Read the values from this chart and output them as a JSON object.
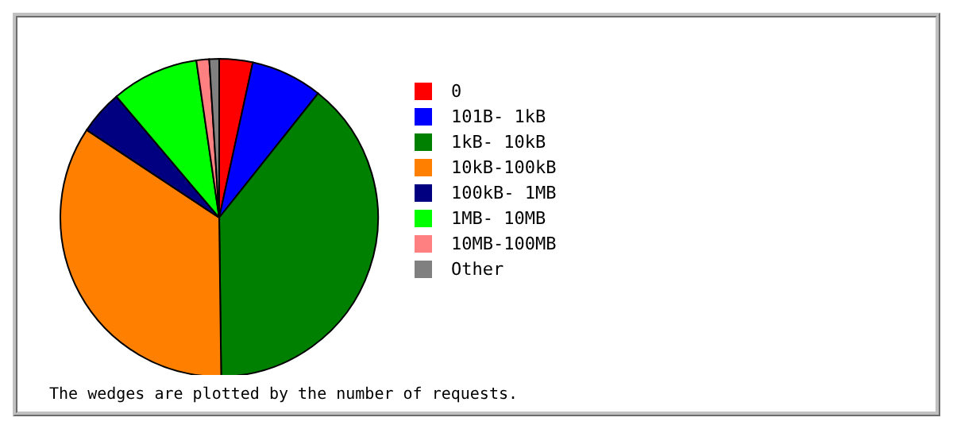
{
  "chart_data": {
    "type": "pie",
    "categories": [
      "0",
      "101B- 1kB",
      "1kB- 10kB",
      "10kB-100kB",
      "100kB- 1MB",
      "1MB- 10MB",
      "10MB-100MB",
      "Other"
    ],
    "values": [
      3.4,
      7.3,
      39.1,
      34.5,
      4.5,
      8.9,
      1.3,
      1.0
    ],
    "colors": [
      "#ff0000",
      "#0000ff",
      "#008000",
      "#ff8000",
      "#000080",
      "#00ff00",
      "#ff8080",
      "#808080"
    ],
    "legend": "right",
    "annotations": [
      "The wedges are plotted by the number of requests."
    ]
  }
}
